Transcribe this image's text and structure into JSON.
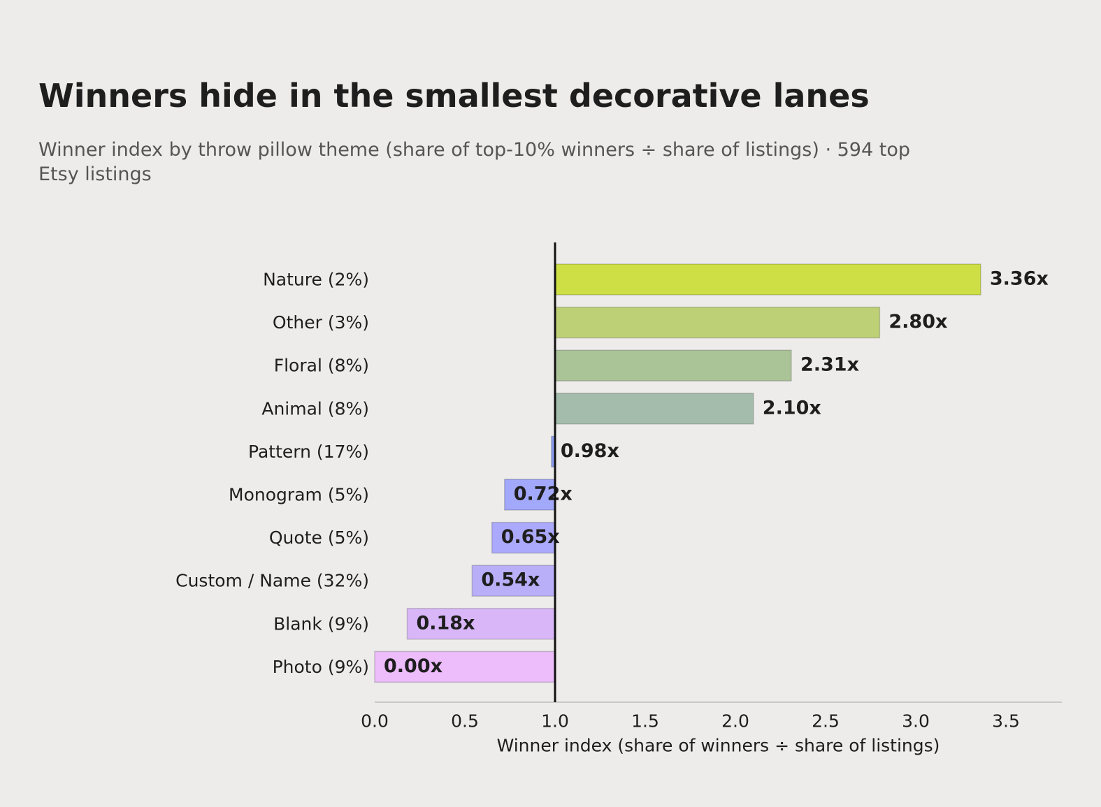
{
  "title": "Winners hide in the smallest decorative lanes",
  "subtitle": "Winner index by throw pillow theme (share of top-10% winners ÷ share of listings) · 594 top Etsy listings",
  "chart_data": {
    "type": "bar",
    "orientation": "horizontal",
    "title": "Winners hide in the smallest decorative lanes",
    "xlabel": "Winner index  (share of winners ÷ share of listings)",
    "ylabel": "",
    "xlim": [
      0,
      3.8
    ],
    "xticks": [
      0.0,
      0.5,
      1.0,
      1.5,
      2.0,
      2.5,
      3.0,
      3.5
    ],
    "baseline": 1.0,
    "categories": [
      "Nature  (2%)",
      "Other  (3%)",
      "Floral  (8%)",
      "Animal  (8%)",
      "Pattern  (17%)",
      "Monogram  (5%)",
      "Quote  (5%)",
      "Custom / Name  (32%)",
      "Blank  (9%)",
      "Photo  (9%)"
    ],
    "values": [
      3.36,
      2.8,
      2.31,
      2.1,
      0.98,
      0.72,
      0.65,
      0.54,
      0.18,
      0.0
    ],
    "value_labels": [
      "3.36x",
      "2.80x",
      "2.31x",
      "2.10x",
      "0.98x",
      "0.72x",
      "0.65x",
      "0.54x",
      "0.18x",
      "0.00x"
    ],
    "colors": [
      "#cddf45",
      "#bdd076",
      "#aac498",
      "#a4bcab",
      "#8c9df0",
      "#a2a8fa",
      "#aba9fb",
      "#b9aff9",
      "#d8b6f8",
      "#ecbcfb"
    ],
    "grid": false,
    "legend": "none"
  }
}
